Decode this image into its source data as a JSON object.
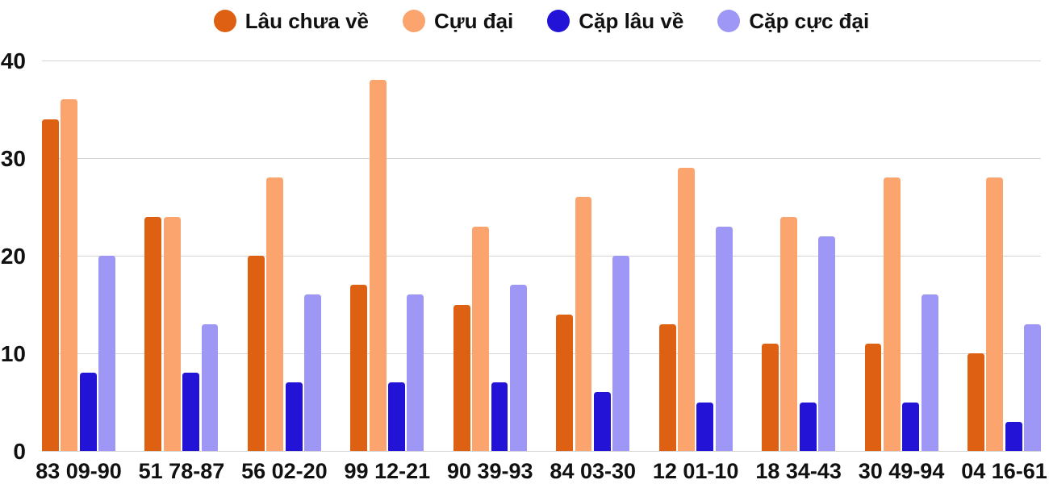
{
  "chart_data": {
    "type": "bar",
    "categories": [
      "83 09-90",
      "51 78-87",
      "56 02-20",
      "99 12-21",
      "90 39-93",
      "84 03-30",
      "12 01-10",
      "18 34-43",
      "30 49-94",
      "04 16-61"
    ],
    "series": [
      {
        "name": "Lâu chưa về",
        "color": "#dd6013",
        "values": [
          34,
          24,
          20,
          17,
          15,
          14,
          13,
          11,
          11,
          10
        ]
      },
      {
        "name": "Cựu đại",
        "color": "#fba46d",
        "values": [
          36,
          24,
          28,
          38,
          23,
          26,
          29,
          24,
          28,
          28
        ]
      },
      {
        "name": "Cặp lâu về",
        "color": "#2213d6",
        "values": [
          8,
          8,
          7,
          7,
          7,
          6,
          5,
          5,
          5,
          3
        ]
      },
      {
        "name": "Cặp cực đại",
        "color": "#9e97f5",
        "values": [
          20,
          13,
          16,
          16,
          17,
          20,
          23,
          22,
          16,
          13
        ]
      }
    ],
    "title": "",
    "xlabel": "",
    "ylabel": "",
    "ylim": [
      0,
      40
    ],
    "yticks": [
      0,
      10,
      20,
      30,
      40
    ],
    "grid": "horizontal",
    "legend_position": "top",
    "background_color": "#ffffff",
    "gridline_color": "#d4d4d4",
    "text_color": "#111111"
  }
}
